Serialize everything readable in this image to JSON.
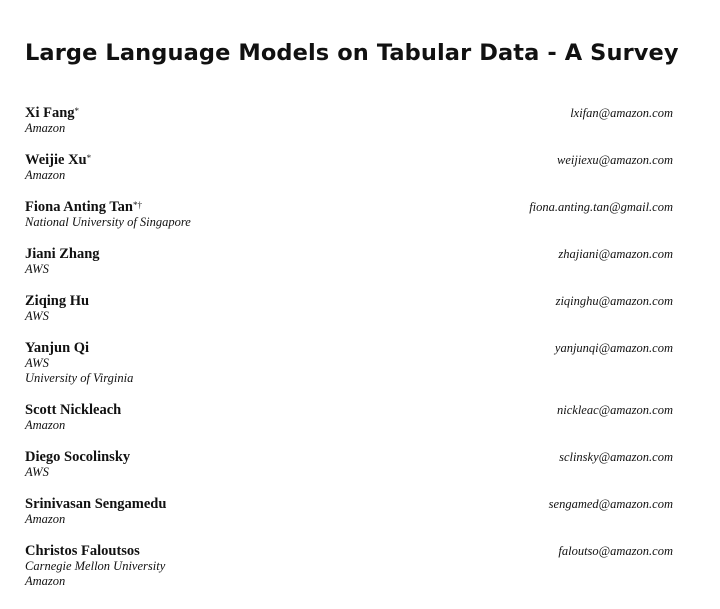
{
  "title": "Large Language Models on Tabular Data - A Survey",
  "authors": [
    {
      "name": "Xi Fang",
      "mark": "*",
      "affiliations": [
        "Amazon"
      ],
      "email": "lxifan@amazon.com"
    },
    {
      "name": "Weijie Xu",
      "mark": "*",
      "affiliations": [
        "Amazon"
      ],
      "email": "weijiexu@amazon.com"
    },
    {
      "name": "Fiona Anting Tan",
      "mark": "*†",
      "affiliations": [
        "National University of Singapore"
      ],
      "email": "fiona.anting.tan@gmail.com"
    },
    {
      "name": "Jiani Zhang",
      "mark": "",
      "affiliations": [
        "AWS"
      ],
      "email": "zhajiani@amazon.com"
    },
    {
      "name": "Ziqing Hu",
      "mark": "",
      "affiliations": [
        "AWS"
      ],
      "email": "ziqinghu@amazon.com"
    },
    {
      "name": "Yanjun Qi",
      "mark": "",
      "affiliations": [
        "AWS",
        "University of Virginia"
      ],
      "email": "yanjunqi@amazon.com"
    },
    {
      "name": "Scott Nickleach",
      "mark": "",
      "affiliations": [
        "Amazon"
      ],
      "email": "nickleac@amazon.com"
    },
    {
      "name": "Diego Socolinsky",
      "mark": "",
      "affiliations": [
        "AWS"
      ],
      "email": "sclinsky@amazon.com"
    },
    {
      "name": "Srinivasan Sengamedu",
      "mark": "",
      "affiliations": [
        "Amazon"
      ],
      "email": "sengamed@amazon.com"
    },
    {
      "name": "Christos Faloutsos",
      "mark": "",
      "affiliations": [
        "Carnegie Mellon University",
        "Amazon"
      ],
      "email": "faloutso@amazon.com"
    }
  ]
}
